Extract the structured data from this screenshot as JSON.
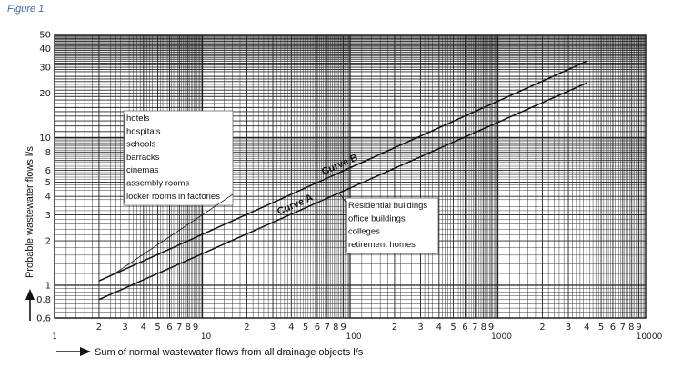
{
  "figure_label": "Figure 1",
  "chart_data": {
    "type": "line",
    "xlabel": "Sum of normal wastewater flows from all drainage objects l/s",
    "ylabel": "Probable wastewater flows l/s",
    "xscale": "log",
    "yscale": "log",
    "xlim": [
      1,
      10000
    ],
    "ylim": [
      0.6,
      50
    ],
    "grid": true,
    "x_ticks_major": [
      {
        "value": 1,
        "label": "1"
      },
      {
        "value": 10,
        "label": "10"
      },
      {
        "value": 100,
        "label": "100"
      },
      {
        "value": 1000,
        "label": "1000"
      },
      {
        "value": 10000,
        "label": "10000"
      }
    ],
    "x_ticks_minor_labels": [
      "2",
      "3",
      "4",
      "5",
      "6",
      "7",
      "8",
      "9"
    ],
    "y_ticks": [
      {
        "value": 0.6,
        "label": "0,6"
      },
      {
        "value": 0.8,
        "label": "0,8"
      },
      {
        "value": 1,
        "label": "1"
      },
      {
        "value": 2,
        "label": "2"
      },
      {
        "value": 3,
        "label": "3"
      },
      {
        "value": 4,
        "label": "4"
      },
      {
        "value": 5,
        "label": "5"
      },
      {
        "value": 6,
        "label": "6"
      },
      {
        "value": 8,
        "label": "8"
      },
      {
        "value": 10,
        "label": "10"
      },
      {
        "value": 20,
        "label": "20"
      },
      {
        "value": 30,
        "label": "30"
      },
      {
        "value": 40,
        "label": "40"
      },
      {
        "value": 50,
        "label": "50"
      }
    ],
    "series": [
      {
        "name": "Curve A",
        "x": [
          2,
          4000
        ],
        "y": [
          0.8,
          23.5
        ]
      },
      {
        "name": "Curve B",
        "x": [
          2,
          4000
        ],
        "y": [
          1.07,
          33
        ]
      }
    ],
    "annotations": [
      {
        "series": "Curve B",
        "lines": [
          "hotels",
          "hospitals",
          "schools",
          "barracks",
          "cinemas",
          "assembly rooms",
          "locker rooms in factories"
        ]
      },
      {
        "series": "Curve A",
        "lines": [
          "Residential buildings",
          "office buildings",
          "colleges",
          "retirement homes"
        ]
      }
    ]
  }
}
